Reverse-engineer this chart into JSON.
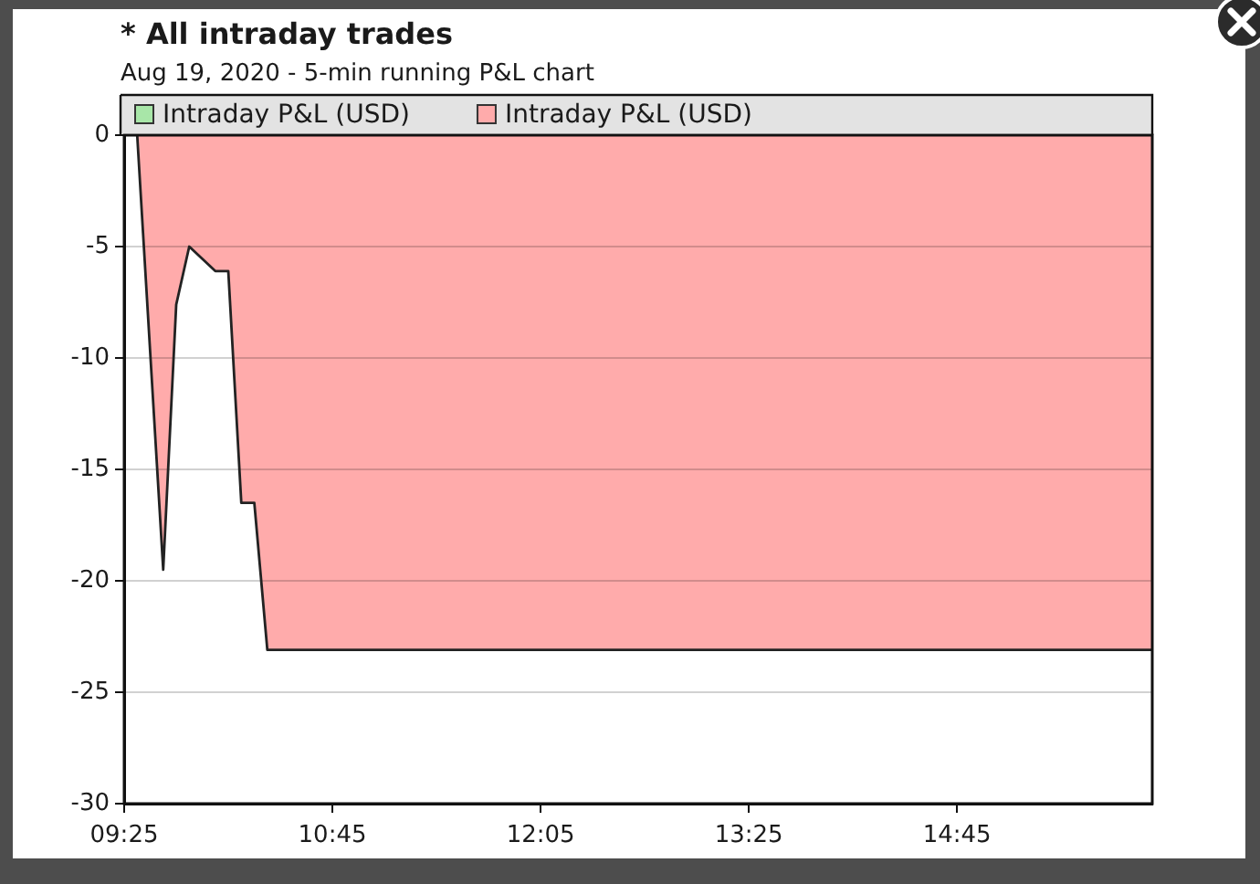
{
  "chart_data": {
    "type": "area",
    "title": "* All intraday trades",
    "subtitle": "Aug 19, 2020 - 5-min running P&L chart",
    "x": [
      9.5,
      9.666667,
      9.75,
      9.833333,
      10,
      10.083333,
      10.166667,
      10.25,
      10.333333,
      16
    ],
    "series": [
      {
        "name": "Intraday P&L (USD)",
        "color": "#a8e6a8",
        "values": [
          null,
          null,
          null,
          null,
          null,
          null,
          null,
          null,
          null,
          null
        ]
      },
      {
        "name": "Intraday P&L (USD)",
        "color": "#ffabab",
        "values": [
          0,
          -19.5,
          -7.6,
          -5,
          -6.1,
          -6.1,
          -16.5,
          -16.5,
          -23.1,
          -23.1
        ]
      }
    ],
    "xlim": [
      9.416667,
      16
    ],
    "xticks": [
      {
        "value": 9.416667,
        "label": "09:25"
      },
      {
        "value": 10.75,
        "label": "10:45"
      },
      {
        "value": 12.083333,
        "label": "12:05"
      },
      {
        "value": 13.416667,
        "label": "13:25"
      },
      {
        "value": 14.75,
        "label": "14:45"
      }
    ],
    "ylim": [
      -30,
      0
    ],
    "yticks": [
      -30,
      -25,
      -20,
      -15,
      -10,
      -5,
      0
    ],
    "grid": "y",
    "legend": "top",
    "marker": "none"
  }
}
